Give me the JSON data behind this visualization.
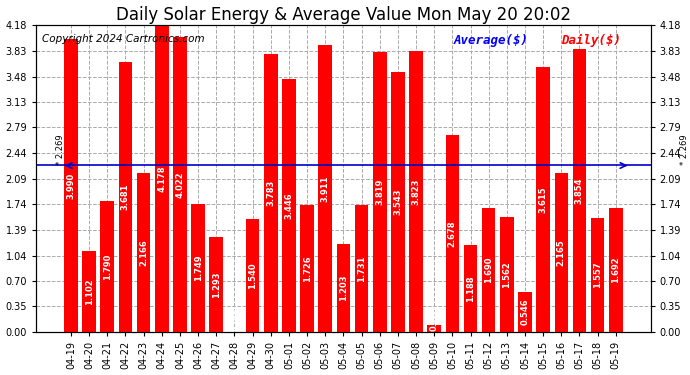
{
  "title": "Daily Solar Energy & Average Value Mon May 20 20:02",
  "copyright": "Copyright 2024 Cartronics.com",
  "legend_avg": "Average($)",
  "legend_daily": "Daily($)",
  "average_value": 2.269,
  "categories": [
    "04-19",
    "04-20",
    "04-21",
    "04-22",
    "04-23",
    "04-24",
    "04-25",
    "04-26",
    "04-27",
    "04-28",
    "04-29",
    "04-30",
    "05-01",
    "05-02",
    "05-03",
    "05-04",
    "05-05",
    "05-06",
    "05-07",
    "05-08",
    "05-09",
    "05-10",
    "05-11",
    "05-12",
    "05-13",
    "05-14",
    "05-15",
    "05-16",
    "05-17",
    "05-18",
    "05-19"
  ],
  "values": [
    3.99,
    1.102,
    1.79,
    3.681,
    2.166,
    4.178,
    4.022,
    1.749,
    1.293,
    0.0,
    1.54,
    3.783,
    3.446,
    1.726,
    3.911,
    1.203,
    1.731,
    3.819,
    3.543,
    3.823,
    0.101,
    2.678,
    1.188,
    1.69,
    1.562,
    0.546,
    3.615,
    2.165,
    3.854,
    1.557,
    1.692
  ],
  "bar_color": "#ff0000",
  "avg_line_color": "#0000cd",
  "title_color": "#000000",
  "copyright_color": "#000000",
  "legend_avg_color": "#0000ff",
  "legend_daily_color": "#ff0000",
  "background_color": "#ffffff",
  "grid_color": "#aaaaaa",
  "ylim": [
    0.0,
    4.18
  ],
  "yticks": [
    0.0,
    0.35,
    0.7,
    1.04,
    1.39,
    1.74,
    2.09,
    2.44,
    2.79,
    3.13,
    3.48,
    3.83,
    4.18
  ],
  "title_fontsize": 12,
  "copyright_fontsize": 7.5,
  "tick_fontsize": 7,
  "bar_label_fontsize": 6,
  "legend_fontsize": 9
}
